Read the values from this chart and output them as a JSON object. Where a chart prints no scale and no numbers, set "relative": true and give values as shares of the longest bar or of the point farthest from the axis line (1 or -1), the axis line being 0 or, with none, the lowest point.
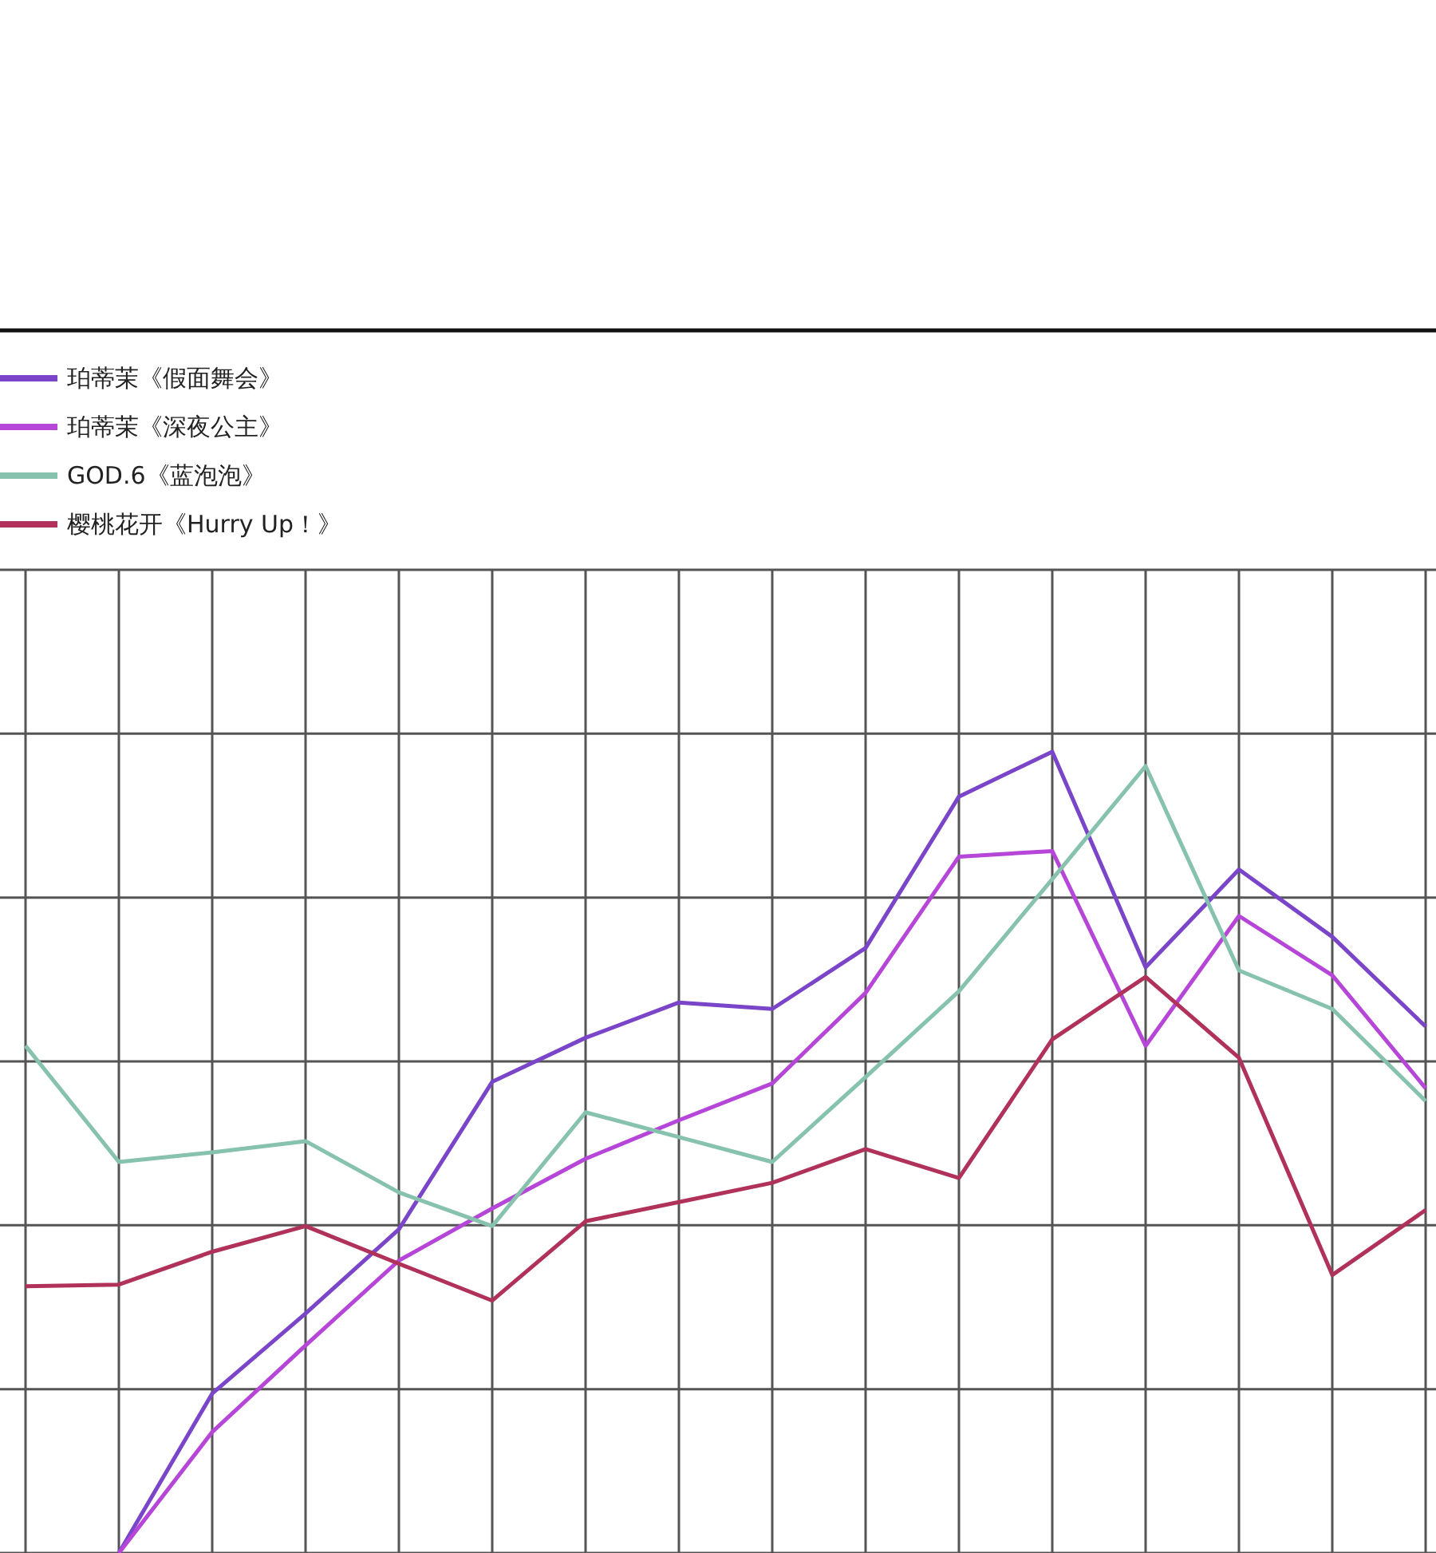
{
  "chart_data": {
    "type": "line",
    "relative": true,
    "categories": [
      null,
      null,
      null,
      null,
      null,
      null,
      null,
      null,
      null,
      null,
      null,
      null,
      null,
      null,
      null,
      null
    ],
    "grid": true,
    "legend": "top left",
    "marker": "none",
    "line_style": "solid",
    "series": [
      {
        "name": "珀蒂茉《假面舞会》",
        "color": "#7a45c8",
        "values": [
          null,
          0,
          0.199,
          0.299,
          0.404,
          0.588,
          0.643,
          0.687,
          0.679,
          0.755,
          0.944,
          1,
          0.731,
          0.853,
          0.769,
          0.657
        ]
      },
      {
        "name": "珀蒂茉《深夜公主》",
        "color": "#b646d8",
        "values": [
          null,
          0,
          0.151,
          0.259,
          0.365,
          0.43,
          0.492,
          0.54,
          0.586,
          0.699,
          0.869,
          0.876,
          0.633,
          0.795,
          0.721,
          0.58
        ]
      },
      {
        "name": "GOD.6《蓝泡泡》",
        "color": "#86c2ad",
        "values": [
          0.633,
          0.488,
          0.5,
          0.514,
          0.45,
          0.408,
          0.55,
          0.519,
          0.488,
          0.594,
          0.701,
          0.841,
          0.982,
          0.727,
          0.679,
          0.564
        ]
      },
      {
        "name": "樱桃花开《Hurry Up！》",
        "color": "#b0325a",
        "values": [
          0.333,
          0.335,
          0.376,
          0.408,
          0.361,
          0.315,
          0.414,
          0.438,
          0.462,
          0.504,
          0.468,
          0.641,
          0.719,
          0.618,
          0.347,
          0.428
        ]
      }
    ]
  }
}
